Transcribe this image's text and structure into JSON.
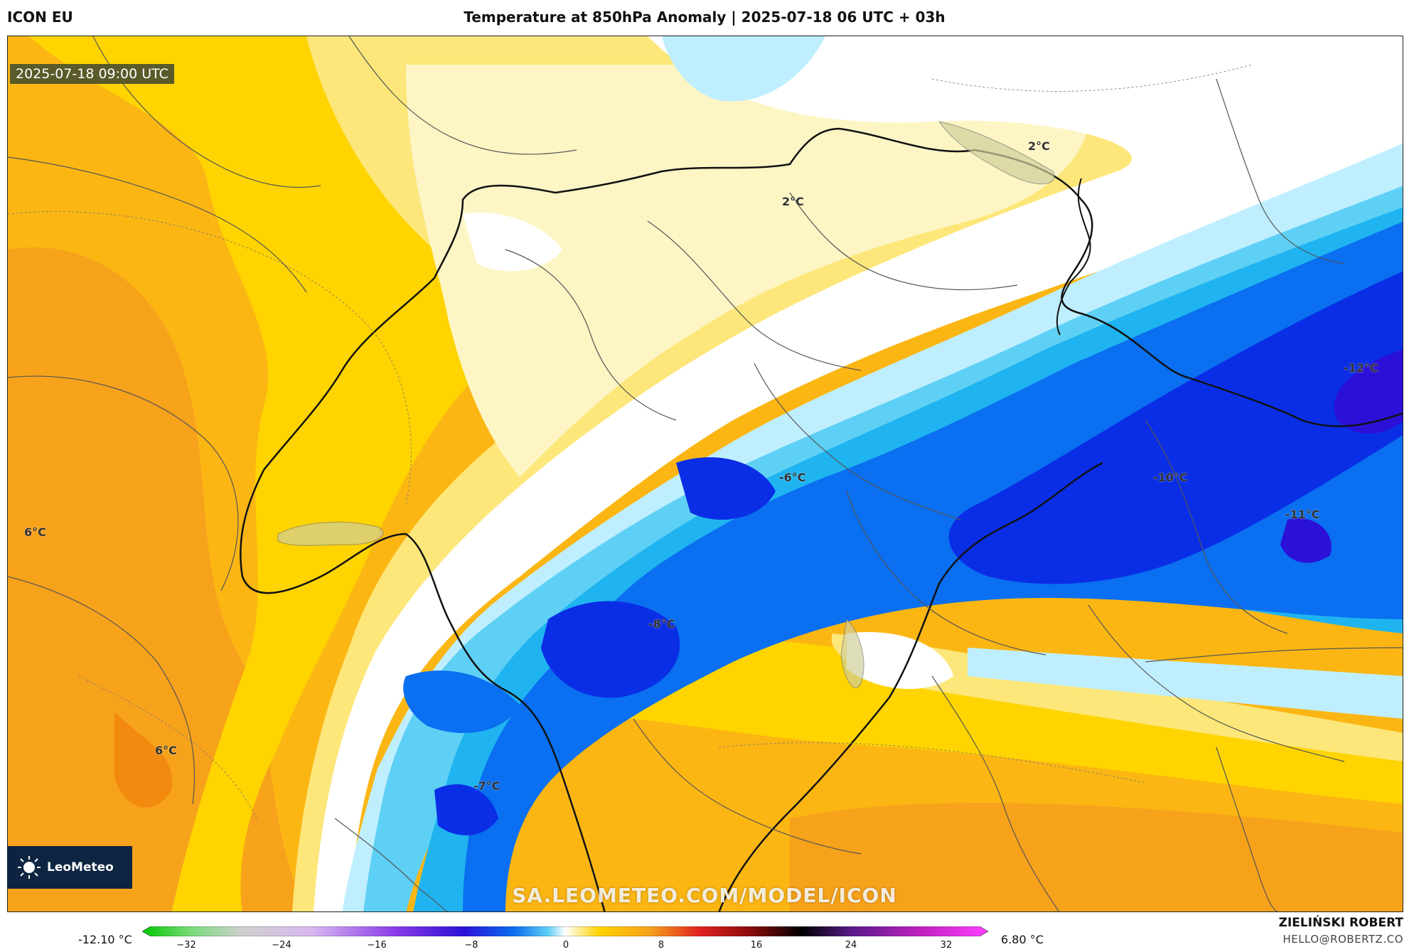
{
  "header": {
    "model": "ICON EU",
    "title": "Temperature at 850hPa Anomaly | 2025-07-18 06 UTC + 03h"
  },
  "map": {
    "valid_time": "2025-07-18 09:00 UTC",
    "labels": [
      {
        "text": "2°C",
        "id": "north-east"
      },
      {
        "text": "2°C",
        "id": "north-central"
      },
      {
        "text": "-12°C",
        "id": "east"
      },
      {
        "text": "-6°C",
        "id": "central"
      },
      {
        "text": "-10°C",
        "id": "east-central"
      },
      {
        "text": "-11°C",
        "id": "east-south"
      },
      {
        "text": "6°C",
        "id": "west"
      },
      {
        "text": "-8°C",
        "id": "south-central"
      },
      {
        "text": "6°C",
        "id": "south-west"
      },
      {
        "text": "-7°C",
        "id": "south"
      }
    ],
    "colors": {
      "warm_deep": "#f7a21b",
      "warm": "#fbb614",
      "yellow": "#ffd400",
      "yellow_light": "#fde77a",
      "cream": "#fdf5c4",
      "white": "#ffffff",
      "ice": "#bfefff",
      "sky": "#5fd0f5",
      "cyan": "#1fb4f0",
      "blue": "#0a6ff0",
      "deep_blue": "#0a2ee6",
      "indigo": "#2b10d8"
    }
  },
  "branding": {
    "logo": "LeoMeteo",
    "watermark": "SA.LEOMETEO.COM/MODEL/ICON"
  },
  "colorbar": {
    "min_label": "-12.10 °C",
    "max_label": "6.80 °C",
    "ticks": [
      "−32",
      "−24",
      "−16",
      "−8",
      "0",
      "8",
      "16",
      "24",
      "32"
    ]
  },
  "credit": {
    "author": "ZIELIŃSKI ROBERT",
    "email": "HELLO@ROBERTZ.CO"
  }
}
